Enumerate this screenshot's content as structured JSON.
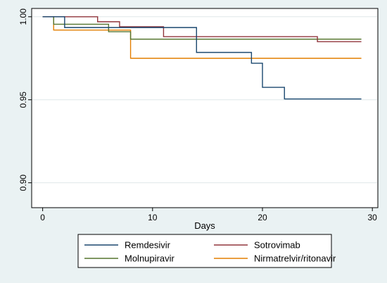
{
  "chart_data": {
    "type": "line",
    "step": true,
    "xlabel": "Days",
    "ylabel": "",
    "xlim": [
      -1,
      30.5
    ],
    "ylim": [
      0.885,
      1.005
    ],
    "x_ticks": [
      0,
      10,
      20,
      30
    ],
    "x_tick_labels": [
      "0",
      "10",
      "20",
      "30"
    ],
    "y_ticks": [
      0.9,
      0.95,
      1.0
    ],
    "y_tick_labels": [
      "0.90",
      "0.95",
      "1.00"
    ],
    "grid": "horizontal",
    "legend_position": "bottom",
    "background_color": "#eaf2f3",
    "plot_background_color": "#ffffff",
    "series": [
      {
        "name": "Remdesivir",
        "color": "#1a476f",
        "x": [
          0,
          2,
          7,
          14,
          19,
          20,
          22,
          29
        ],
        "y": [
          1.0,
          0.9935,
          0.9935,
          0.9785,
          0.972,
          0.9575,
          0.9505,
          0.9505
        ]
      },
      {
        "name": "Sotrovimab",
        "color": "#90353b",
        "x": [
          0,
          5,
          7,
          11,
          25,
          29
        ],
        "y": [
          1.0,
          0.997,
          0.994,
          0.988,
          0.985,
          0.985
        ]
      },
      {
        "name": "Molnupiravir",
        "color": "#55752f",
        "x": [
          0,
          1,
          6,
          8,
          29
        ],
        "y": [
          1.0,
          0.9955,
          0.991,
          0.9865,
          0.9865
        ]
      },
      {
        "name": "Nirmatrelvir/ritonavir",
        "color": "#e37e00",
        "x": [
          0,
          1,
          8,
          29
        ],
        "y": [
          1.0,
          0.992,
          0.975,
          0.975
        ]
      }
    ]
  }
}
